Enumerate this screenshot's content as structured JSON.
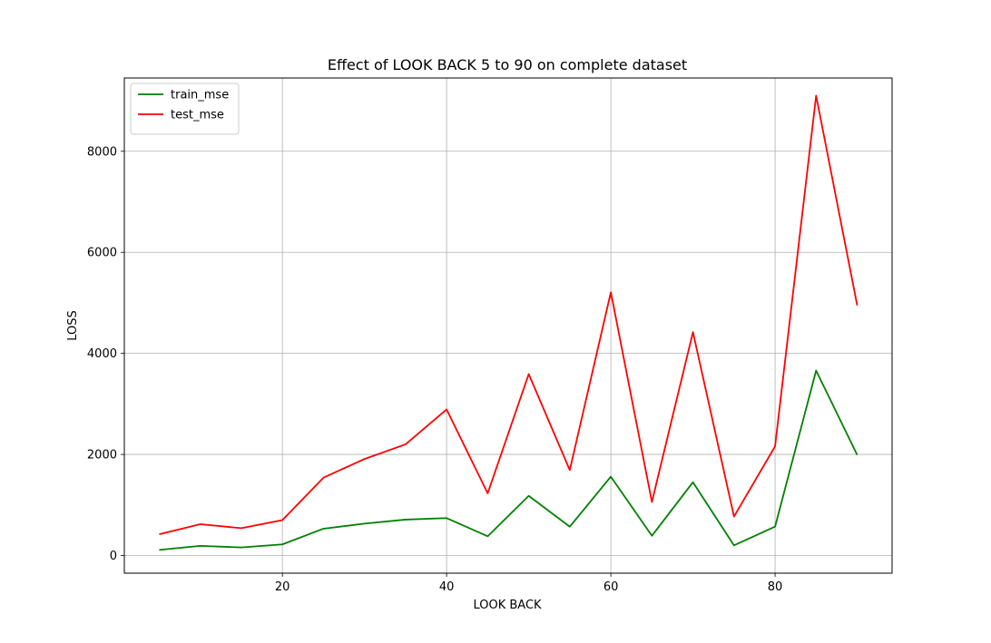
{
  "chart_data": {
    "type": "line",
    "title": "Effect of LOOK BACK 5 to 90 on complete dataset",
    "xlabel": "LOOK BACK",
    "ylabel": "LOSS",
    "xlim": [
      0.75,
      94.25
    ],
    "ylim": [
      -350,
      9450
    ],
    "xticks": [
      20,
      40,
      60,
      80
    ],
    "xtick_labels": [
      "20",
      "40",
      "60",
      "80"
    ],
    "yticks": [
      0,
      2000,
      4000,
      6000,
      8000
    ],
    "ytick_labels": [
      "0",
      "2000",
      "4000",
      "6000",
      "8000"
    ],
    "grid": true,
    "legend_position": "upper-left",
    "x": [
      5,
      10,
      15,
      20,
      25,
      30,
      35,
      40,
      45,
      50,
      55,
      60,
      65,
      70,
      75,
      80,
      85,
      90
    ],
    "series": [
      {
        "name": "train_mse",
        "color": "#008000",
        "values": [
          110,
          190,
          160,
          220,
          530,
          630,
          710,
          740,
          380,
          1180,
          570,
          1560,
          390,
          1450,
          200,
          570,
          3660,
          1990
        ]
      },
      {
        "name": "test_mse",
        "color": "#ff0000",
        "values": [
          420,
          620,
          540,
          700,
          1540,
          1910,
          2200,
          2890,
          1230,
          3590,
          1690,
          5210,
          1060,
          4420,
          770,
          2160,
          9100,
          4950
        ]
      }
    ]
  }
}
